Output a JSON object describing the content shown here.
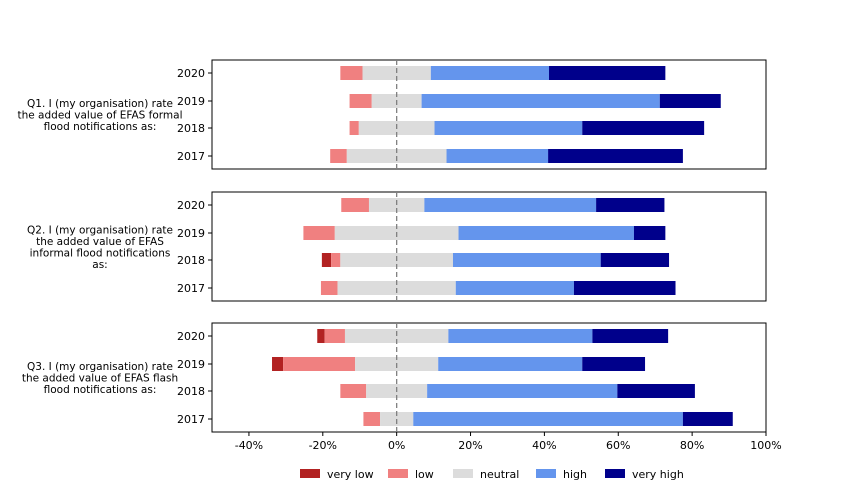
{
  "chart_data": {
    "type": "bar",
    "orientation": "horizontal",
    "stacked": "diverging",
    "xlim": [
      -50,
      100
    ],
    "xticks": [
      -40,
      -20,
      0,
      20,
      40,
      60,
      80,
      100
    ],
    "xtick_labels": [
      "-40%",
      "-20%",
      "0%",
      "20%",
      "40%",
      "60%",
      "80%",
      "100%"
    ],
    "reference_line": 0,
    "categories_legend": [
      {
        "name": "very low",
        "color": "#b22222"
      },
      {
        "name": "low",
        "color": "#f08080"
      },
      {
        "name": "neutral",
        "color": "#dcdcdc"
      },
      {
        "name": "high",
        "color": "#6495ed"
      },
      {
        "name": "very high",
        "color": "#00008b"
      }
    ],
    "panels": [
      {
        "question_lines": [
          "Q1. I (my organisation) rate",
          "the added value of EFAS formal",
          "flood notifications as:"
        ],
        "rows": [
          {
            "year": "2020",
            "very_low": 0,
            "low": 6,
            "neutral": 18.5,
            "high": 32,
            "very_high": 31.5
          },
          {
            "year": "2019",
            "very_low": 0,
            "low": 6,
            "neutral": 13.5,
            "high": 64.5,
            "very_high": 16.5
          },
          {
            "year": "2018",
            "very_low": 0,
            "low": 2.5,
            "neutral": 20.5,
            "high": 40,
            "very_high": 33
          },
          {
            "year": "2017",
            "very_low": 0,
            "low": 4.5,
            "neutral": 27,
            "high": 27.5,
            "very_high": 36.5
          }
        ]
      },
      {
        "question_lines": [
          "Q2. I (my organisation) rate",
          "the added value of EFAS",
          "informal flood notifications",
          "as:"
        ],
        "rows": [
          {
            "year": "2020",
            "very_low": 0,
            "low": 7.5,
            "neutral": 15,
            "high": 46.5,
            "very_high": 18.5
          },
          {
            "year": "2019",
            "very_low": 0,
            "low": 8.5,
            "neutral": 33.5,
            "high": 47.5,
            "very_high": 8.5
          },
          {
            "year": "2018",
            "very_low": 2.5,
            "low": 2.5,
            "neutral": 30.5,
            "high": 40,
            "very_high": 18.5
          },
          {
            "year": "2017",
            "very_low": 0,
            "low": 4.5,
            "neutral": 32,
            "high": 32,
            "very_high": 27.5
          }
        ]
      },
      {
        "question_lines": [
          "Q3. I (my organisation) rate",
          "the added value of EFAS flash",
          "flood notifications as:"
        ],
        "rows": [
          {
            "year": "2020",
            "very_low": 2,
            "low": 5.5,
            "neutral": 28,
            "high": 39,
            "very_high": 20.5
          },
          {
            "year": "2019",
            "very_low": 3,
            "low": 19.5,
            "neutral": 22.5,
            "high": 39,
            "very_high": 17
          },
          {
            "year": "2018",
            "very_low": 0,
            "low": 7,
            "neutral": 16.5,
            "high": 51.5,
            "very_high": 21
          },
          {
            "year": "2017",
            "very_low": 0,
            "low": 4.5,
            "neutral": 9,
            "high": 73,
            "very_high": 13.5
          }
        ]
      }
    ]
  }
}
